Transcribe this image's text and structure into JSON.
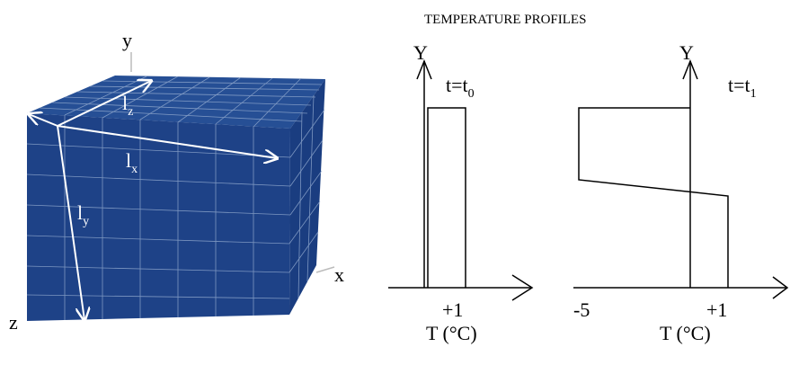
{
  "cube": {
    "axes": {
      "x": "x",
      "y": "y",
      "z": "z"
    },
    "dims": {
      "lx": {
        "main": "l",
        "sub": "x"
      },
      "ly": {
        "main": "l",
        "sub": "y"
      },
      "lz": {
        "main": "l",
        "sub": "z"
      }
    },
    "colors": {
      "face": "#1e4287",
      "grid": "#8ea6cc",
      "arrow": "#ffffff"
    }
  },
  "profiles": {
    "title": "TEMPERATURE PROFILES",
    "left": {
      "axis_label": "Y",
      "time": {
        "main": "t=t",
        "sub": "0"
      },
      "tick": "+1",
      "xlabel": "T (°C)"
    },
    "right": {
      "axis_label": "Y",
      "time": {
        "main": "t=t",
        "sub": "1"
      },
      "tick_neg": "-5",
      "tick_pos": "+1",
      "xlabel": "T (°C)"
    }
  }
}
